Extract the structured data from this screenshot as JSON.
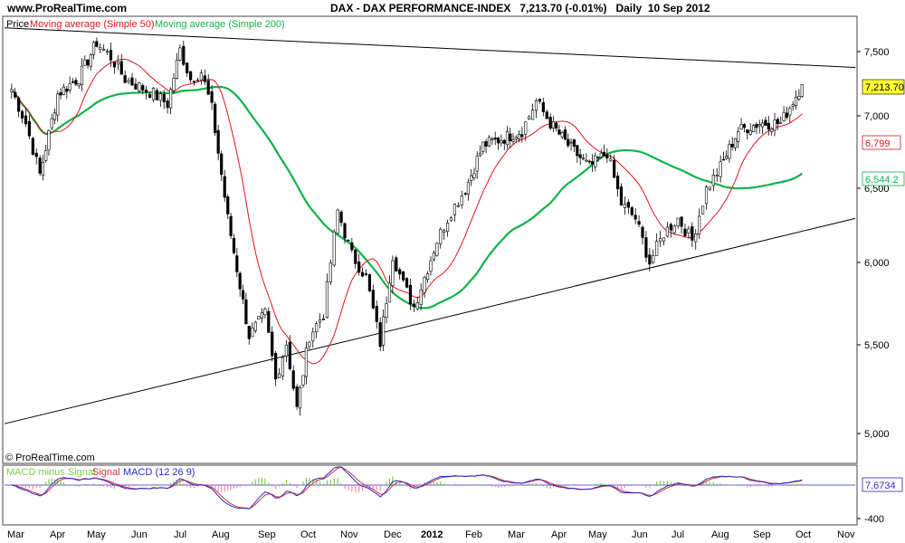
{
  "header": {
    "site": "www.ProRealTime.com",
    "title": "DAX - DAX PERFORMANCE-INDEX",
    "last": "7,213.70",
    "change": "(-0.01%)",
    "period": "Daily",
    "date": "10 Sep 2012"
  },
  "legend": {
    "price": "Price",
    "ma50": "Moving average (Simple 50)",
    "ma200": "Moving average (Simple 200)"
  },
  "macd_legend": {
    "hist": "MACD minus Signal",
    "signal": "Signal",
    "macd": "MACD (12 26 9)"
  },
  "copyright": "© ProRealTime.com",
  "colors": {
    "price": "#000000",
    "ma50": "#e0151b",
    "ma200": "#11b34a",
    "macd": "#2929c8",
    "signal": "#d4303a",
    "hist": "#7ccf4e",
    "last_bg": "#ffff33"
  },
  "chart_data": {
    "type": "line",
    "title": "DAX - DAX PERFORMANCE-INDEX",
    "y_ticks": [
      "7,500",
      "7,000",
      "6,500",
      "6,000",
      "5,500",
      "5,000"
    ],
    "macd_ticks": [
      "-400"
    ],
    "x_ticks": [
      "Mar",
      "Apr",
      "May",
      "Jun",
      "Jul",
      "Aug",
      "Sep",
      "Oct",
      "Nov",
      "Dec",
      "2012",
      "Feb",
      "Mar",
      "Apr",
      "May",
      "Jun",
      "Jul",
      "Aug",
      "Sep",
      "Oct",
      "Nov"
    ],
    "ylim": [
      4850,
      7700
    ],
    "price_close": [
      [
        "Mar 2011",
        7180
      ],
      [
        "Mar 2011",
        6950
      ],
      [
        "Mar 2011",
        6600
      ],
      [
        "Apr 2011",
        7150
      ],
      [
        "Apr 2011",
        7260
      ],
      [
        "May 2011",
        7500
      ],
      [
        "May 2011",
        7400
      ],
      [
        "May 2011",
        7250
      ],
      [
        "Jun 2011",
        7200
      ],
      [
        "Jun 2011",
        7150
      ],
      [
        "Jun 2011",
        7080
      ],
      [
        "Jul 2011",
        7450
      ],
      [
        "Jul 2011",
        7250
      ],
      [
        "Jul 2011",
        7300
      ],
      [
        "Jul 2011",
        7050
      ],
      [
        "Aug 2011",
        6300
      ],
      [
        "Aug 2011",
        5500
      ],
      [
        "Sep 2011",
        5650
      ],
      [
        "Sep 2011",
        5200
      ],
      [
        "Sep 2011",
        5450
      ],
      [
        "Sep 2011",
        5000
      ],
      [
        "Oct 2011",
        5500
      ],
      [
        "Oct 2011",
        5650
      ],
      [
        "Oct 2011",
        6350
      ],
      [
        "Nov 2011",
        6050
      ],
      [
        "Nov 2011",
        5900
      ],
      [
        "Nov 2011",
        5450
      ],
      [
        "Dec 2011",
        6050
      ],
      [
        "Dec 2011",
        5850
      ],
      [
        "Dec 2011",
        5700
      ],
      [
        "Dec 2011",
        5900
      ],
      [
        "Jan 2012",
        6150
      ],
      [
        "Jan 2012",
        6350
      ],
      [
        "Jan 2012",
        6500
      ],
      [
        "Feb 2012",
        6800
      ],
      [
        "Feb 2012",
        6850
      ],
      [
        "Mar 2012",
        6900
      ],
      [
        "Mar 2012",
        7100
      ],
      [
        "Mar 2012",
        6950
      ],
      [
        "Apr 2012",
        6800
      ],
      [
        "Apr 2012",
        6650
      ],
      [
        "May 2012",
        6750
      ],
      [
        "May 2012",
        6400
      ],
      [
        "May 2012",
        6300
      ],
      [
        "Jun 2012",
        6000
      ],
      [
        "Jun 2012",
        6200
      ],
      [
        "Jun 2012",
        6300
      ],
      [
        "Jul 2012",
        6150
      ],
      [
        "Jul 2012",
        6500
      ],
      [
        "Jul 2012",
        6650
      ],
      [
        "Aug 2012",
        6900
      ],
      [
        "Aug 2012",
        6950
      ],
      [
        "Sep 2012",
        6950
      ],
      [
        "Sep 2012",
        7213.7
      ]
    ],
    "series": [
      {
        "name": "Moving average (Simple 50)",
        "last_value": 6799,
        "last_label": "6,799"
      },
      {
        "name": "Moving average (Simple 200)",
        "last_value": 6544.2,
        "last_label": "6,544.2"
      },
      {
        "name": "MACD (12 26 9)",
        "last_value": 7.6734,
        "last_label": "7.6734"
      }
    ],
    "last_price_label": "7,213.70",
    "trendlines": [
      {
        "from": [
          "Mar 2011",
          7600
        ],
        "to": [
          "Nov 2012",
          7330
        ]
      },
      {
        "from": [
          "Mar 2011",
          4900
        ],
        "to": [
          "Nov 2012",
          6300
        ]
      }
    ],
    "grid": false,
    "legend": "top-left"
  }
}
